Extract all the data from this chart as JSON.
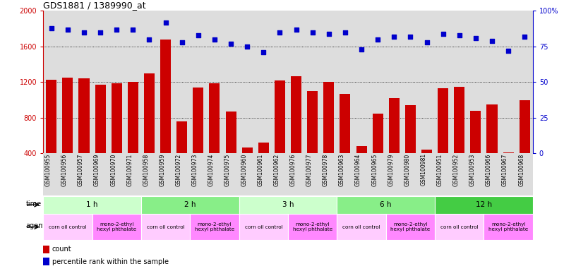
{
  "title": "GDS1881 / 1389990_at",
  "samples": [
    "GSM100955",
    "GSM100956",
    "GSM100957",
    "GSM100969",
    "GSM100970",
    "GSM100971",
    "GSM100958",
    "GSM100959",
    "GSM100972",
    "GSM100973",
    "GSM100974",
    "GSM100975",
    "GSM100960",
    "GSM100961",
    "GSM100962",
    "GSM100976",
    "GSM100977",
    "GSM100978",
    "GSM100963",
    "GSM100964",
    "GSM100965",
    "GSM100979",
    "GSM100980",
    "GSM100981",
    "GSM100951",
    "GSM100952",
    "GSM100953",
    "GSM100966",
    "GSM100967",
    "GSM100968"
  ],
  "counts": [
    1230,
    1250,
    1240,
    1170,
    1190,
    1200,
    1300,
    1680,
    760,
    1140,
    1190,
    870,
    470,
    520,
    1220,
    1270,
    1100,
    1200,
    1070,
    480,
    850,
    1020,
    940,
    440,
    1130,
    1150,
    880,
    950,
    410,
    1000
  ],
  "percentiles": [
    88,
    87,
    85,
    85,
    87,
    87,
    80,
    92,
    78,
    83,
    80,
    77,
    75,
    71,
    85,
    87,
    85,
    84,
    85,
    73,
    80,
    82,
    82,
    78,
    84,
    83,
    81,
    79,
    72,
    82
  ],
  "bar_color": "#cc0000",
  "dot_color": "#0000cc",
  "ylim_left": [
    400,
    2000
  ],
  "ylim_right": [
    0,
    100
  ],
  "yticks_left": [
    400,
    800,
    1200,
    1600,
    2000
  ],
  "yticks_right": [
    0,
    25,
    50,
    75,
    100
  ],
  "grid_values": [
    800,
    1200,
    1600
  ],
  "time_groups": [
    {
      "label": "1 h",
      "start": 0,
      "end": 6,
      "color": "#ccffcc"
    },
    {
      "label": "2 h",
      "start": 6,
      "end": 12,
      "color": "#88ee88"
    },
    {
      "label": "3 h",
      "start": 12,
      "end": 18,
      "color": "#ccffcc"
    },
    {
      "label": "6 h",
      "start": 18,
      "end": 24,
      "color": "#88ee88"
    },
    {
      "label": "12 h",
      "start": 24,
      "end": 30,
      "color": "#44cc44"
    }
  ],
  "agent_groups": [
    {
      "label": "corn oil control",
      "start": 0,
      "end": 3,
      "color": "#ffccff"
    },
    {
      "label": "mono-2-ethyl\nhexyl phthalate",
      "start": 3,
      "end": 6,
      "color": "#ff88ff"
    },
    {
      "label": "corn oil control",
      "start": 6,
      "end": 9,
      "color": "#ffccff"
    },
    {
      "label": "mono-2-ethyl\nhexyl phthalate",
      "start": 9,
      "end": 12,
      "color": "#ff88ff"
    },
    {
      "label": "corn oil control",
      "start": 12,
      "end": 15,
      "color": "#ffccff"
    },
    {
      "label": "mono-2-ethyl\nhexyl phthalate",
      "start": 15,
      "end": 18,
      "color": "#ff88ff"
    },
    {
      "label": "corn oil control",
      "start": 18,
      "end": 21,
      "color": "#ffccff"
    },
    {
      "label": "mono-2-ethyl\nhexyl phthalate",
      "start": 21,
      "end": 24,
      "color": "#ff88ff"
    },
    {
      "label": "corn oil control",
      "start": 24,
      "end": 27,
      "color": "#ffccff"
    },
    {
      "label": "mono-2-ethyl\nhexyl phthalate",
      "start": 27,
      "end": 30,
      "color": "#ff88ff"
    }
  ],
  "bg_color": "#dddddd",
  "legend_count_color": "#cc0000",
  "legend_pct_color": "#0000cc"
}
